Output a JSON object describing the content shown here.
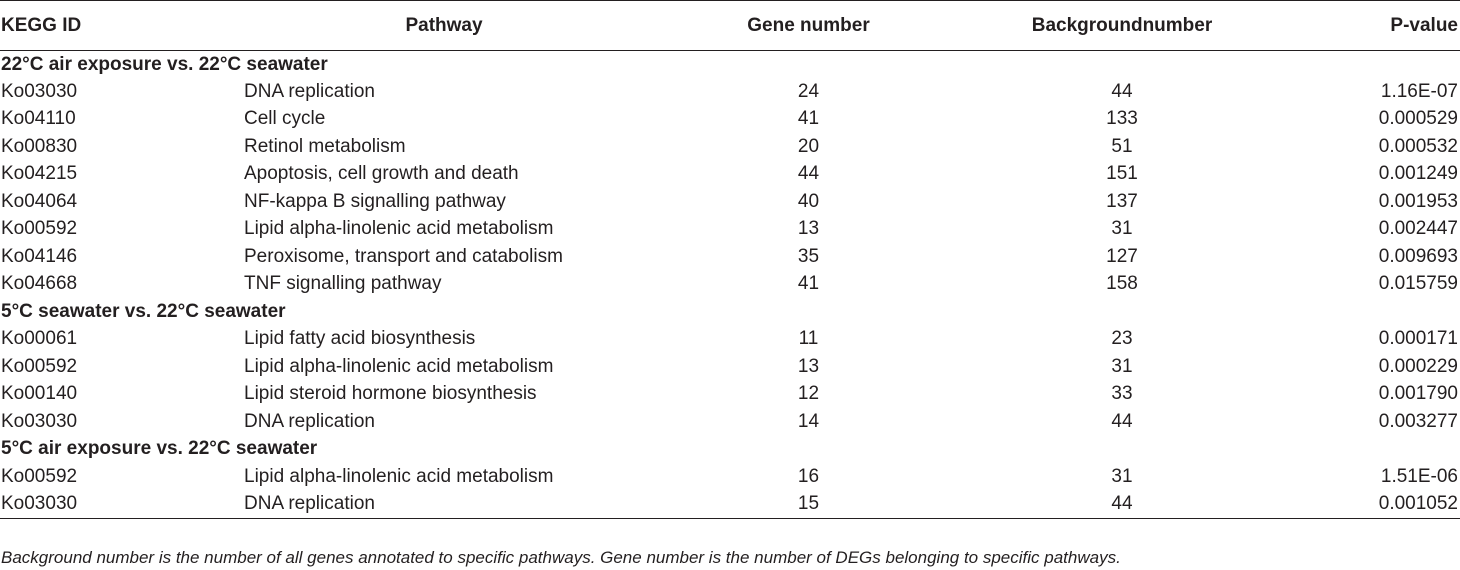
{
  "headers": {
    "kegg_id": "KEGG ID",
    "pathway": "Pathway",
    "gene_number": "Gene number",
    "background_number": "Backgroundnumber",
    "p_value": "P-value"
  },
  "groups": [
    {
      "title": "22°C air exposure vs. 22°C seawater",
      "rows": [
        {
          "id": "Ko03030",
          "pathway": "DNA replication",
          "gene": "24",
          "background": "44",
          "p": "1.16E-07"
        },
        {
          "id": "Ko04110",
          "pathway": "Cell cycle",
          "gene": "41",
          "background": "133",
          "p": "0.000529"
        },
        {
          "id": "Ko00830",
          "pathway": "Retinol metabolism",
          "gene": "20",
          "background": "51",
          "p": "0.000532"
        },
        {
          "id": "Ko04215",
          "pathway": "Apoptosis, cell growth and death",
          "gene": "44",
          "background": "151",
          "p": "0.001249"
        },
        {
          "id": "Ko04064",
          "pathway": "NF-kappa B signalling pathway",
          "gene": "40",
          "background": "137",
          "p": "0.001953"
        },
        {
          "id": "Ko00592",
          "pathway": "Lipid alpha-linolenic acid metabolism",
          "gene": "13",
          "background": "31",
          "p": "0.002447"
        },
        {
          "id": "Ko04146",
          "pathway": "Peroxisome, transport and catabolism",
          "gene": "35",
          "background": "127",
          "p": "0.009693"
        },
        {
          "id": "Ko04668",
          "pathway": "TNF signalling pathway",
          "gene": "41",
          "background": "158",
          "p": "0.015759"
        }
      ]
    },
    {
      "title": "5°C seawater vs. 22°C seawater",
      "rows": [
        {
          "id": "Ko00061",
          "pathway": "Lipid fatty acid biosynthesis",
          "gene": "11",
          "background": "23",
          "p": "0.000171"
        },
        {
          "id": "Ko00592",
          "pathway": "Lipid alpha-linolenic acid metabolism",
          "gene": "13",
          "background": "31",
          "p": "0.000229"
        },
        {
          "id": "Ko00140",
          "pathway": "Lipid steroid hormone biosynthesis",
          "gene": "12",
          "background": "33",
          "p": "0.001790"
        },
        {
          "id": "Ko03030",
          "pathway": "DNA replication",
          "gene": "14",
          "background": "44",
          "p": "0.003277"
        }
      ]
    },
    {
      "title": "5°C air exposure vs. 22°C seawater",
      "rows": [
        {
          "id": "Ko00592",
          "pathway": "Lipid alpha-linolenic acid metabolism",
          "gene": "16",
          "background": "31",
          "p": "1.51E-06"
        },
        {
          "id": "Ko03030",
          "pathway": "DNA replication",
          "gene": "15",
          "background": "44",
          "p": "0.001052"
        }
      ]
    }
  ],
  "footnote": "Background number is the number of all genes annotated to specific pathways. Gene number is the number of DEGs belonging to specific pathways."
}
